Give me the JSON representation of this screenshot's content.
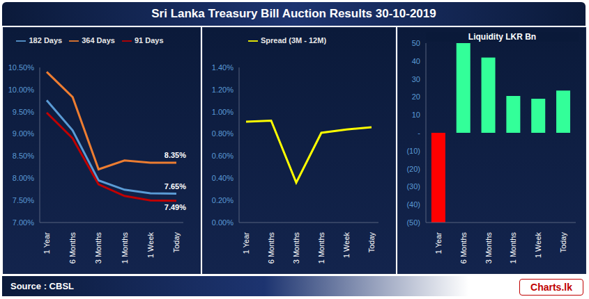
{
  "title": "Sri Lanka Treasury Bill Auction Results  30-10-2019",
  "source": "Source : CBSL",
  "logo": "Charts.lk",
  "chart_data": [
    {
      "type": "line",
      "categories": [
        "1 Year",
        "6 Months",
        "3 Months",
        "1 Months",
        "1 Week",
        "Today"
      ],
      "series": [
        {
          "name": "182 Days",
          "color": "#5b9bd5",
          "values": [
            9.76,
            9.08,
            7.95,
            7.74,
            7.66,
            7.65
          ],
          "value_labels": [
            null,
            null,
            null,
            null,
            null,
            "7.65%"
          ]
        },
        {
          "name": "91 Days",
          "color": "#c00000",
          "values": [
            9.48,
            8.9,
            7.86,
            7.6,
            7.5,
            7.49
          ],
          "value_labels": [
            null,
            null,
            null,
            null,
            null,
            "7.49%"
          ]
        },
        {
          "name": "364 Days",
          "color": "#ed7d31",
          "values": [
            10.4,
            9.83,
            8.2,
            8.4,
            8.35,
            8.35
          ],
          "value_labels": [
            null,
            null,
            null,
            null,
            null,
            "8.35%"
          ]
        }
      ],
      "ylim": [
        7,
        10.5
      ],
      "yticks": [
        {
          "value": 7,
          "label": "7.00%"
        },
        {
          "value": 7.5,
          "label": "7.50%"
        },
        {
          "value": 8,
          "label": "8.00%"
        },
        {
          "value": 8.5,
          "label": "8.50%"
        },
        {
          "value": 9,
          "label": "9.00%"
        },
        {
          "value": 9.5,
          "label": "9.50%"
        },
        {
          "value": 10,
          "label": "10.00%"
        },
        {
          "value": 10.5,
          "label": "10.50%"
        }
      ],
      "grid": false,
      "legend": "top"
    },
    {
      "type": "line",
      "categories": [
        "1 Year",
        "6 Months",
        "3 Months",
        "1 Months",
        "1 Week",
        "Today"
      ],
      "series": [
        {
          "name": "Spread (3M - 12M)",
          "color": "#ffff00",
          "values": [
            0.91,
            0.92,
            0.36,
            0.81,
            0.84,
            0.86
          ]
        }
      ],
      "ylim": [
        0,
        1.4
      ],
      "yticks": [
        {
          "value": 0,
          "label": "0.00%"
        },
        {
          "value": 0.2,
          "label": "0.20%"
        },
        {
          "value": 0.4,
          "label": "0.40%"
        },
        {
          "value": 0.6,
          "label": "0.60%"
        },
        {
          "value": 0.8,
          "label": "0.80%"
        },
        {
          "value": 1,
          "label": "1.00%"
        },
        {
          "value": 1.2,
          "label": "1.20%"
        },
        {
          "value": 1.4,
          "label": "1.40%"
        }
      ],
      "grid": false,
      "legend": "top"
    },
    {
      "type": "bar",
      "title": "Liquidity LKR Bn",
      "categories": [
        "1 Year",
        "6 Months",
        "3 Months",
        "1 Months",
        "1 Week",
        "Today"
      ],
      "values": [
        -50,
        50,
        42,
        20.5,
        19,
        23.5
      ],
      "colors": [
        "#ff0000",
        "#33ff99",
        "#33ff99",
        "#33ff99",
        "#33ff99",
        "#33ff99"
      ],
      "ylim": [
        -50,
        50
      ],
      "yticks": [
        {
          "value": -50,
          "label": "(50)"
        },
        {
          "value": -40,
          "label": "(40)"
        },
        {
          "value": -30,
          "label": "(30)"
        },
        {
          "value": -20,
          "label": "(20)"
        },
        {
          "value": -10,
          "label": "(10)"
        },
        {
          "value": 0,
          "label": "-"
        },
        10,
        20,
        30,
        40,
        50
      ],
      "grid": false
    }
  ]
}
